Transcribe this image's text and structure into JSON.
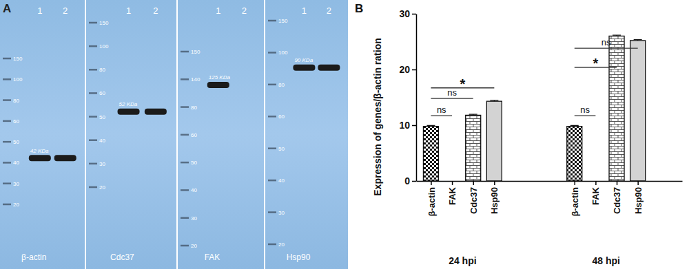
{
  "panel_a": {
    "label": "A",
    "blots": [
      {
        "name": "β-actin",
        "lanes": [
          "1",
          "2"
        ],
        "ladder": [
          150,
          100,
          80,
          60,
          50,
          40,
          30,
          20
        ],
        "band_label": "42 KDa",
        "band_kda": 42,
        "band_lanes": [
          true,
          true
        ]
      },
      {
        "name": "Cdc37",
        "lanes": [
          "1",
          "2"
        ],
        "ladder": [
          150,
          100,
          80,
          60,
          50,
          40,
          30,
          20
        ],
        "band_label": "52 KDa",
        "band_kda": 52,
        "band_lanes": [
          true,
          true
        ]
      },
      {
        "name": "FAK",
        "lanes": [
          "1",
          "2"
        ],
        "ladder": [
          150,
          140,
          80,
          60,
          50,
          40,
          30,
          20
        ],
        "band_label": "125 KDa",
        "band_kda": 125,
        "band_lanes": [
          true,
          false
        ]
      },
      {
        "name": "Hsp90",
        "lanes": [
          "1",
          "2"
        ],
        "ladder": [
          150,
          100,
          80,
          60,
          50,
          40,
          30,
          20
        ],
        "band_label": "90 KDa",
        "band_kda": 90,
        "band_lanes": [
          true,
          true
        ]
      }
    ]
  },
  "chart_data": {
    "type": "bar",
    "panel_label": "B",
    "ylabel": "Expression of genes/β-actin ration",
    "categories": [
      "β-actin",
      "FAK",
      "Cdc37",
      "Hsp90",
      "β-actin",
      "FAK",
      "Cdc37",
      "Hsp90"
    ],
    "group_labels": [
      "24 hpi",
      "48 hpi"
    ],
    "values": [
      9.8,
      0,
      11.8,
      14.3,
      9.8,
      0,
      26,
      25.2
    ],
    "errors": [
      0.15,
      0,
      0.15,
      0.15,
      0.15,
      0,
      0.15,
      0.15
    ],
    "colors": [
      "#111111",
      "#111111",
      "#555555",
      "#d3d3d3",
      "#111111",
      "#111111",
      "#555555",
      "#d3d3d3"
    ],
    "ylim": [
      0,
      30
    ],
    "yticks": [
      0,
      10,
      20,
      30
    ],
    "grid": false,
    "comparisons": [
      {
        "from": 0,
        "to": 1,
        "label": "ns",
        "y": 11.7
      },
      {
        "from": 0,
        "to": 2,
        "label": "ns",
        "y": 14.8
      },
      {
        "from": 0,
        "to": 3,
        "label": "*",
        "y": 16.7
      },
      {
        "from": 4,
        "to": 5,
        "label": "ns",
        "y": 11.7
      },
      {
        "from": 4,
        "to": 6,
        "label": "*",
        "y": 20.4
      },
      {
        "from": 4,
        "to": 7,
        "label": "ns",
        "y": 23.8
      }
    ]
  }
}
